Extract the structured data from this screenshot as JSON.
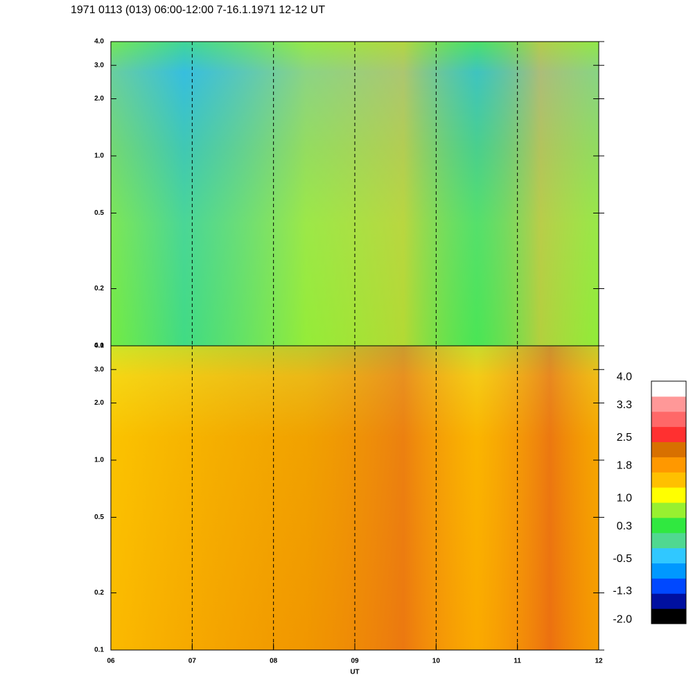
{
  "chart_data": [
    {
      "type": "heatmap",
      "title": "1971 0113 (013) 06:00-12:00 7-16.1.1971  12-12 UT",
      "log_y": true,
      "ylim": [
        0.1,
        4.0
      ],
      "yticks": [
        0.1,
        0.2,
        0.5,
        {
          "value": 1,
          "label": "1.0"
        },
        {
          "value": 2,
          "label": "2.0"
        },
        {
          "value": 3,
          "label": "3.0"
        },
        {
          "value": 4,
          "label": "4.0"
        }
      ],
      "xlim": [
        6,
        12
      ],
      "grid": true
    },
    {
      "type": "heatmap",
      "log_y": true,
      "ylim": [
        0.1,
        4.0
      ],
      "yticks": [
        0.1,
        0.2,
        0.5,
        {
          "value": 1,
          "label": "1.0"
        },
        {
          "value": 2,
          "label": "2.0"
        },
        {
          "value": 3,
          "label": "3.0"
        },
        {
          "value": 4,
          "label": "4.0"
        }
      ],
      "xlim": [
        6,
        12
      ],
      "x_label": "UT",
      "xticks": [
        {
          "value": 6,
          "label": "06"
        },
        {
          "value": 7,
          "label": "07"
        },
        {
          "value": 8,
          "label": "08"
        },
        {
          "value": 9,
          "label": "09"
        },
        10,
        11,
        12
      ],
      "grid": true,
      "colorbar": {
        "clim": [
          -2.1,
          3.9
        ],
        "ticks": [
          {
            "value": -2,
            "label": "-2.0"
          },
          -1.3,
          -0.5,
          0.3,
          {
            "value": 1,
            "label": "1.0"
          },
          1.8,
          2.5,
          3.3,
          {
            "value": 4,
            "label": "4.0"
          }
        ],
        "colors": [
          "#000000",
          "#0010a0",
          "#0048ff",
          "#0098ff",
          "#30c8ff",
          "#50d890",
          "#30e840",
          "#98f030",
          "#ffff00",
          "#ffc000",
          "#ff9800",
          "#d87000",
          "#ff3030",
          "#ff6868",
          "#ff9898",
          "#ffffff"
        ]
      }
    }
  ]
}
